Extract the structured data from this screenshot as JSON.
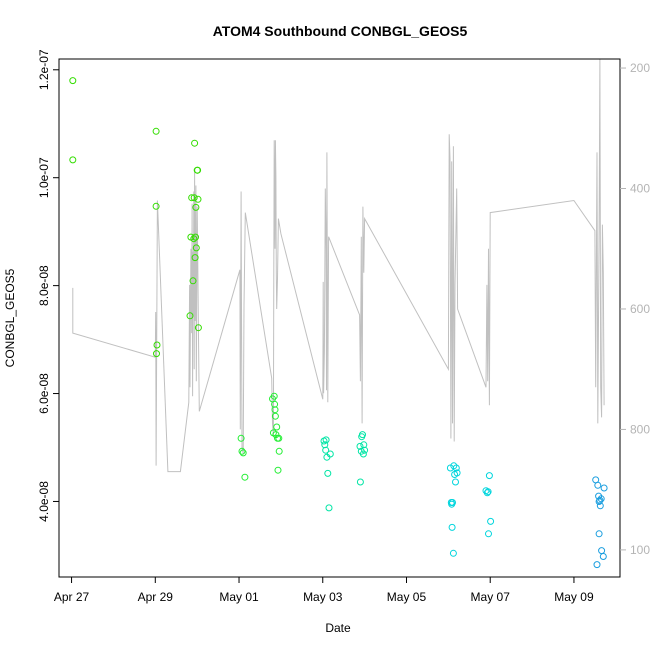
{
  "chart_data": {
    "type": "scatter",
    "title": "ATOM4 Southbound CONBGL_GEOS5",
    "xlabel": "Date",
    "ylabel": "CONBGL_GEOS5",
    "x_unit": "days (April 27 = 27, May 01 = 31)",
    "xlim": [
      26.7,
      40.1
    ],
    "ylim": [
      2.6e-08,
      1.22e-07
    ],
    "y_ticks": [
      4e-08,
      6e-08,
      8e-08,
      1e-07,
      1.2e-07
    ],
    "y_tick_labels": [
      "4.0e-08",
      "6.0e-08",
      "8.0e-08",
      "1.0e-07",
      "1.2e-07"
    ],
    "x_ticks": [
      27,
      29,
      31,
      33,
      35,
      37,
      39
    ],
    "x_tick_labels": [
      "Apr 27",
      "Apr 29",
      "May 01",
      "May 03",
      "May 05",
      "May 07",
      "May 09"
    ],
    "right_axis": {
      "ylim": [
        1045,
        185
      ],
      "ticks": [
        200,
        400,
        600,
        800,
        1000
      ],
      "tick_labels": [
        "200",
        "400",
        "600",
        "800",
        "1000"
      ],
      "color": "#b4b4b4"
    },
    "grid": false,
    "legend": "none",
    "colors": {
      "green": "#33dd00",
      "green2": "#22ee33",
      "teal": "#00e5a5",
      "cyan": "#00d5dd",
      "cyan2": "#00b5e6",
      "blue": "#1a9edf",
      "line": "#c0c0c0"
    },
    "points": [
      {
        "x": 27.03,
        "y": 1.18e-07,
        "c": "green"
      },
      {
        "x": 27.03,
        "y": 1.033e-07,
        "c": "green"
      },
      {
        "x": 29.02,
        "y": 1.086e-07,
        "c": "green"
      },
      {
        "x": 29.02,
        "y": 9.47e-08,
        "c": "green"
      },
      {
        "x": 29.04,
        "y": 6.9e-08,
        "c": "green"
      },
      {
        "x": 29.03,
        "y": 6.74e-08,
        "c": "green"
      },
      {
        "x": 29.83,
        "y": 7.44e-08,
        "c": "green"
      },
      {
        "x": 29.85,
        "y": 8.9e-08,
        "c": "green"
      },
      {
        "x": 29.87,
        "y": 9.63e-08,
        "c": "green"
      },
      {
        "x": 29.9,
        "y": 8.09e-08,
        "c": "green"
      },
      {
        "x": 29.92,
        "y": 8.87e-08,
        "c": "green"
      },
      {
        "x": 29.93,
        "y": 9.63e-08,
        "c": "green"
      },
      {
        "x": 29.94,
        "y": 1.064e-07,
        "c": "green"
      },
      {
        "x": 29.95,
        "y": 8.52e-08,
        "c": "green"
      },
      {
        "x": 29.96,
        "y": 8.9e-08,
        "c": "green"
      },
      {
        "x": 29.97,
        "y": 9.45e-08,
        "c": "green"
      },
      {
        "x": 29.98,
        "y": 8.7e-08,
        "c": "green"
      },
      {
        "x": 30.0,
        "y": 1.014e-07,
        "c": "green"
      },
      {
        "x": 30.02,
        "y": 9.6e-08,
        "c": "green"
      },
      {
        "x": 30.03,
        "y": 7.22e-08,
        "c": "green"
      },
      {
        "x": 30.01,
        "y": 1.014e-07,
        "c": "green"
      },
      {
        "x": 31.05,
        "y": 5.17e-08,
        "c": "green2"
      },
      {
        "x": 31.07,
        "y": 4.93e-08,
        "c": "green2"
      },
      {
        "x": 31.1,
        "y": 4.9e-08,
        "c": "green2"
      },
      {
        "x": 31.14,
        "y": 4.45e-08,
        "c": "green2"
      },
      {
        "x": 31.8,
        "y": 5.9e-08,
        "c": "green2"
      },
      {
        "x": 31.82,
        "y": 5.27e-08,
        "c": "green2"
      },
      {
        "x": 31.84,
        "y": 5.95e-08,
        "c": "green2"
      },
      {
        "x": 31.85,
        "y": 5.8e-08,
        "c": "green2"
      },
      {
        "x": 31.86,
        "y": 5.7e-08,
        "c": "green2"
      },
      {
        "x": 31.87,
        "y": 5.58e-08,
        "c": "green2"
      },
      {
        "x": 31.88,
        "y": 5.24e-08,
        "c": "green2"
      },
      {
        "x": 31.9,
        "y": 5.38e-08,
        "c": "green2"
      },
      {
        "x": 31.92,
        "y": 5.17e-08,
        "c": "green2"
      },
      {
        "x": 31.93,
        "y": 4.58e-08,
        "c": "green2"
      },
      {
        "x": 31.95,
        "y": 5.17e-08,
        "c": "green2"
      },
      {
        "x": 31.96,
        "y": 4.93e-08,
        "c": "green2"
      },
      {
        "x": 33.03,
        "y": 5.12e-08,
        "c": "teal"
      },
      {
        "x": 33.05,
        "y": 5.05e-08,
        "c": "teal"
      },
      {
        "x": 33.07,
        "y": 4.95e-08,
        "c": "teal"
      },
      {
        "x": 33.08,
        "y": 5.14e-08,
        "c": "teal"
      },
      {
        "x": 33.1,
        "y": 4.82e-08,
        "c": "teal"
      },
      {
        "x": 33.12,
        "y": 4.52e-08,
        "c": "teal"
      },
      {
        "x": 33.15,
        "y": 3.88e-08,
        "c": "teal"
      },
      {
        "x": 33.18,
        "y": 4.88e-08,
        "c": "teal"
      },
      {
        "x": 33.89,
        "y": 5.02e-08,
        "c": "teal"
      },
      {
        "x": 33.9,
        "y": 4.36e-08,
        "c": "teal"
      },
      {
        "x": 33.92,
        "y": 4.93e-08,
        "c": "teal"
      },
      {
        "x": 33.93,
        "y": 5.2e-08,
        "c": "teal"
      },
      {
        "x": 33.95,
        "y": 5.24e-08,
        "c": "teal"
      },
      {
        "x": 33.97,
        "y": 4.88e-08,
        "c": "teal"
      },
      {
        "x": 33.98,
        "y": 5.05e-08,
        "c": "teal"
      },
      {
        "x": 34.0,
        "y": 4.95e-08,
        "c": "teal"
      },
      {
        "x": 36.05,
        "y": 4.62e-08,
        "c": "cyan"
      },
      {
        "x": 36.07,
        "y": 3.98e-08,
        "c": "cyan"
      },
      {
        "x": 36.08,
        "y": 3.95e-08,
        "c": "cyan"
      },
      {
        "x": 36.09,
        "y": 3.52e-08,
        "c": "cyan"
      },
      {
        "x": 36.1,
        "y": 3.98e-08,
        "c": "cyan"
      },
      {
        "x": 36.12,
        "y": 3.04e-08,
        "c": "cyan"
      },
      {
        "x": 36.13,
        "y": 4.66e-08,
        "c": "cyan"
      },
      {
        "x": 36.15,
        "y": 4.5e-08,
        "c": "cyan"
      },
      {
        "x": 36.17,
        "y": 4.36e-08,
        "c": "cyan"
      },
      {
        "x": 36.19,
        "y": 4.62e-08,
        "c": "cyan"
      },
      {
        "x": 36.21,
        "y": 4.53e-08,
        "c": "cyan"
      },
      {
        "x": 36.9,
        "y": 4.2e-08,
        "c": "cyan"
      },
      {
        "x": 36.93,
        "y": 4.16e-08,
        "c": "cyan"
      },
      {
        "x": 36.95,
        "y": 4.18e-08,
        "c": "cyan"
      },
      {
        "x": 36.96,
        "y": 3.4e-08,
        "c": "cyan"
      },
      {
        "x": 36.98,
        "y": 4.48e-08,
        "c": "cyan"
      },
      {
        "x": 37.01,
        "y": 3.63e-08,
        "c": "cyan"
      },
      {
        "x": 39.52,
        "y": 4.4e-08,
        "c": "blue"
      },
      {
        "x": 39.55,
        "y": 2.83e-08,
        "c": "blue"
      },
      {
        "x": 39.57,
        "y": 4.3e-08,
        "c": "blue"
      },
      {
        "x": 39.59,
        "y": 4.1e-08,
        "c": "blue"
      },
      {
        "x": 39.6,
        "y": 3.4e-08,
        "c": "blue"
      },
      {
        "x": 39.62,
        "y": 4.02e-08,
        "c": "blue"
      },
      {
        "x": 39.63,
        "y": 3.92e-08,
        "c": "blue"
      },
      {
        "x": 39.65,
        "y": 4.05e-08,
        "c": "blue"
      },
      {
        "x": 39.66,
        "y": 3.09e-08,
        "c": "blue"
      },
      {
        "x": 39.7,
        "y": 2.98e-08,
        "c": "blue"
      },
      {
        "x": 39.72,
        "y": 4.25e-08,
        "c": "blue"
      },
      {
        "x": 39.6,
        "y": 4e-08,
        "c": "blue"
      }
    ],
    "pressure_track": [
      [
        27.03,
        565
      ],
      [
        27.03,
        640
      ],
      [
        29.0,
        680
      ],
      [
        29.01,
        605
      ],
      [
        29.02,
        860
      ],
      [
        29.05,
        420
      ],
      [
        29.3,
        870
      ],
      [
        29.6,
        870
      ],
      [
        29.8,
        755
      ],
      [
        29.82,
        560
      ],
      [
        29.83,
        730
      ],
      [
        29.85,
        500
      ],
      [
        29.87,
        640
      ],
      [
        29.88,
        425
      ],
      [
        29.89,
        745
      ],
      [
        29.9,
        505
      ],
      [
        29.91,
        610
      ],
      [
        29.92,
        405
      ],
      [
        29.93,
        700
      ],
      [
        29.94,
        370
      ],
      [
        29.95,
        620
      ],
      [
        29.96,
        540
      ],
      [
        29.97,
        395
      ],
      [
        29.98,
        720
      ],
      [
        30.0,
        430
      ],
      [
        30.02,
        560
      ],
      [
        30.03,
        630
      ],
      [
        30.05,
        770
      ],
      [
        31.02,
        535
      ],
      [
        31.03,
        800
      ],
      [
        31.05,
        405
      ],
      [
        31.07,
        830
      ],
      [
        31.1,
        840
      ],
      [
        31.12,
        595
      ],
      [
        31.15,
        440
      ],
      [
        31.78,
        715
      ],
      [
        31.8,
        790
      ],
      [
        31.82,
        810
      ],
      [
        31.83,
        540
      ],
      [
        31.84,
        320
      ],
      [
        31.85,
        425
      ],
      [
        31.86,
        500
      ],
      [
        31.87,
        320
      ],
      [
        31.88,
        380
      ],
      [
        31.89,
        540
      ],
      [
        31.9,
        600
      ],
      [
        31.92,
        550
      ],
      [
        31.94,
        450
      ],
      [
        32.0,
        475
      ],
      [
        33.0,
        750
      ],
      [
        33.01,
        555
      ],
      [
        33.02,
        740
      ],
      [
        33.04,
        670
      ],
      [
        33.06,
        400
      ],
      [
        33.08,
        500
      ],
      [
        33.09,
        735
      ],
      [
        33.1,
        340
      ],
      [
        33.12,
        755
      ],
      [
        33.14,
        480
      ],
      [
        33.88,
        610
      ],
      [
        33.9,
        720
      ],
      [
        33.92,
        480
      ],
      [
        33.94,
        790
      ],
      [
        33.96,
        430
      ],
      [
        33.98,
        540
      ],
      [
        34.0,
        450
      ],
      [
        36.0,
        700
      ],
      [
        36.02,
        310
      ],
      [
        36.04,
        350
      ],
      [
        36.06,
        815
      ],
      [
        36.08,
        355
      ],
      [
        36.1,
        790
      ],
      [
        36.12,
        330
      ],
      [
        36.14,
        820
      ],
      [
        36.16,
        560
      ],
      [
        36.2,
        400
      ],
      [
        36.22,
        600
      ],
      [
        36.9,
        730
      ],
      [
        36.92,
        560
      ],
      [
        36.94,
        720
      ],
      [
        36.96,
        500
      ],
      [
        36.98,
        760
      ],
      [
        37.0,
        440
      ],
      [
        39.0,
        420
      ],
      [
        39.5,
        470
      ],
      [
        39.52,
        730
      ],
      [
        39.55,
        340
      ],
      [
        39.57,
        790
      ],
      [
        39.6,
        470
      ],
      [
        39.62,
        185
      ],
      [
        39.64,
        730
      ],
      [
        39.66,
        780
      ],
      [
        39.68,
        460
      ],
      [
        39.7,
        540
      ],
      [
        39.72,
        760
      ]
    ]
  }
}
